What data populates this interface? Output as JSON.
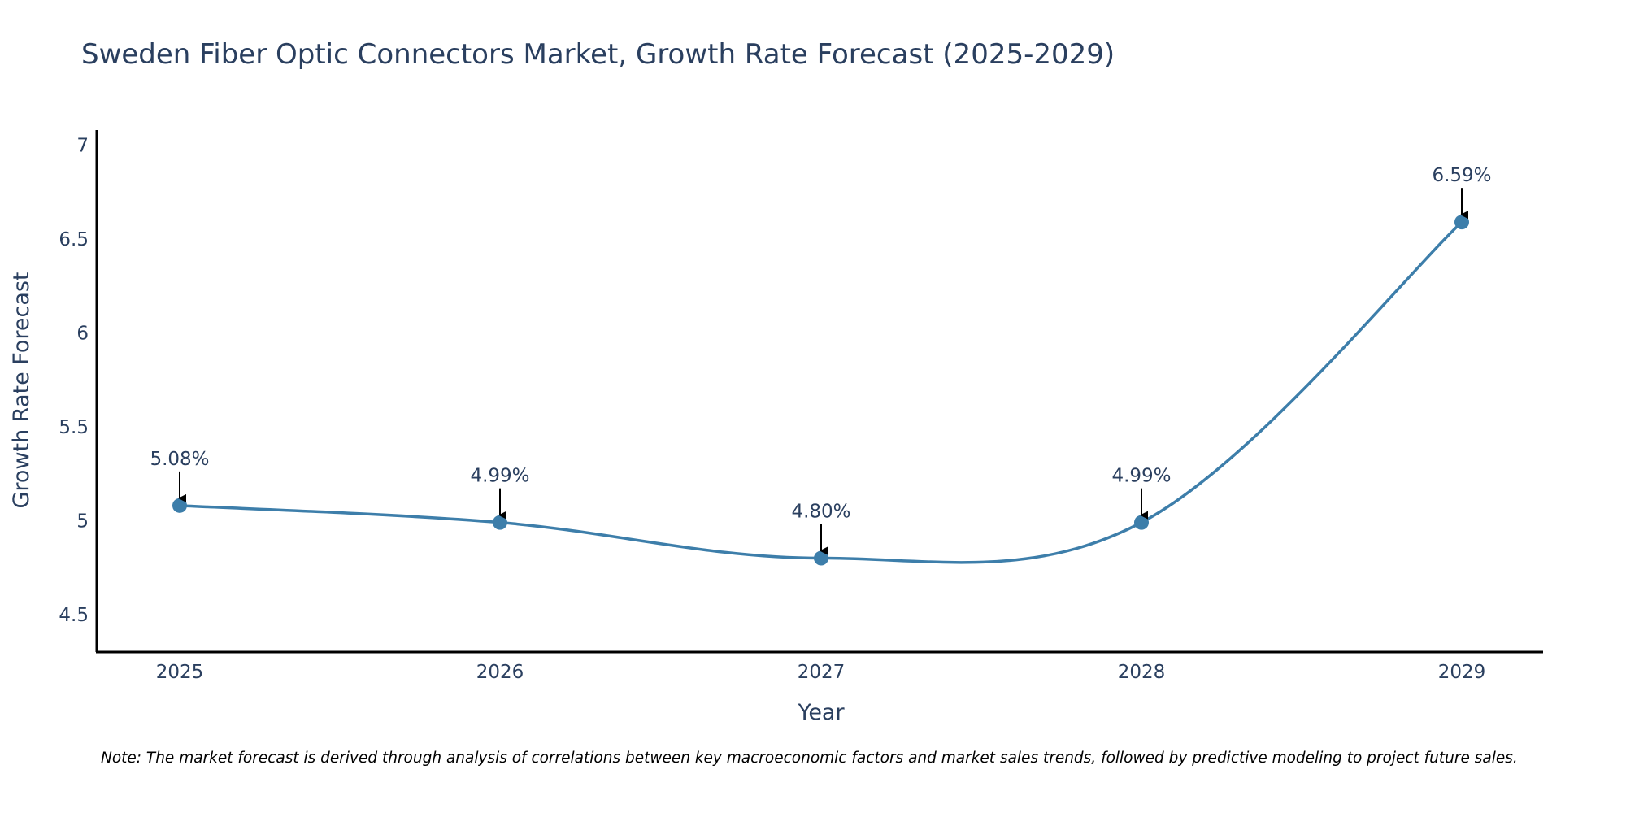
{
  "chart_data": {
    "type": "line",
    "title": "Sweden Fiber Optic Connectors Market, Growth Rate Forecast (2025-2029)",
    "xlabel": "Year",
    "ylabel": "Growth Rate Forecast",
    "categories": [
      "2025",
      "2026",
      "2027",
      "2028",
      "2029"
    ],
    "series": [
      {
        "name": "Growth Rate Forecast",
        "values": [
          5.08,
          4.99,
          4.8,
          4.99,
          6.59
        ],
        "labels": [
          "5.08%",
          "4.99%",
          "4.80%",
          "4.99%",
          "6.59%"
        ]
      }
    ],
    "ylim": [
      4.3,
      7.08
    ],
    "yticks": [
      4.5,
      5,
      5.5,
      6,
      6.5,
      7
    ],
    "ytick_labels": [
      "4.5",
      "5",
      "5.5",
      "6",
      "6.5",
      "7"
    ],
    "grid": false,
    "line_shape": "spline",
    "note": "Note: The market forecast is derived through analysis of correlations between key macroeconomic factors and market sales trends, followed by predictive modeling to project future sales.",
    "colors": {
      "line": "#3d7eaa",
      "marker": "#3d7eaa",
      "text": "#2a3f5f",
      "axis": "#000000",
      "arrow": "#000000"
    }
  }
}
